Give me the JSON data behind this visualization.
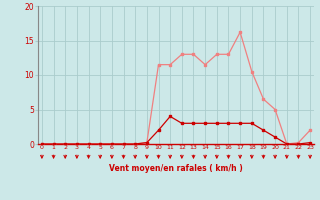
{
  "x": [
    0,
    1,
    2,
    3,
    4,
    5,
    6,
    7,
    8,
    9,
    10,
    11,
    12,
    13,
    14,
    15,
    16,
    17,
    18,
    19,
    20,
    21,
    22,
    23
  ],
  "y_rafales": [
    0,
    0,
    0,
    0,
    0,
    0,
    0,
    0,
    0,
    0.2,
    11.5,
    11.5,
    13,
    13,
    11.5,
    13,
    13,
    16.2,
    10.5,
    6.5,
    5,
    0,
    0.2,
    2
  ],
  "y_moyen": [
    0,
    0,
    0,
    0,
    0,
    0,
    0,
    0,
    0,
    0.2,
    2,
    4,
    3,
    3,
    3,
    3,
    3,
    3,
    3,
    2,
    1,
    0,
    0,
    0.2
  ],
  "xlabel": "Vent moyen/en rafales ( km/h )",
  "ylim": [
    0,
    20
  ],
  "xlim": [
    0,
    23
  ],
  "yticks": [
    0,
    5,
    10,
    15,
    20
  ],
  "xticks": [
    0,
    1,
    2,
    3,
    4,
    5,
    6,
    7,
    8,
    9,
    10,
    11,
    12,
    13,
    14,
    15,
    16,
    17,
    18,
    19,
    20,
    21,
    22,
    23
  ],
  "color_rafales": "#f08080",
  "color_moyen": "#cc0000",
  "bg_color": "#cce8e8",
  "grid_color": "#aacccc",
  "tick_label_color": "#cc0000",
  "axis_label_color": "#cc0000",
  "spine_left_color": "#888888",
  "spine_bottom_color": "#cc0000"
}
